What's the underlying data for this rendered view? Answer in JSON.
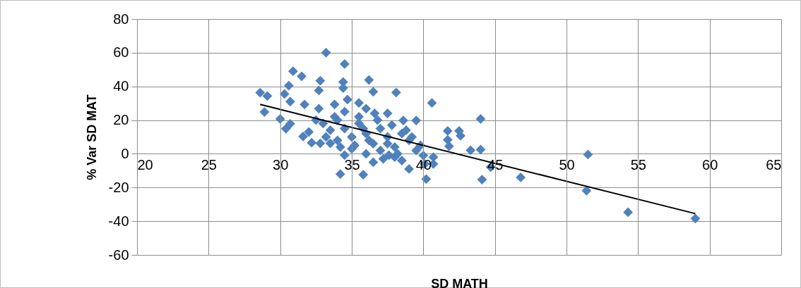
{
  "chart_data": {
    "type": "scatter",
    "xlabel": "SD MATH",
    "ylabel": "% Var SD MAT",
    "xlim": [
      20,
      65
    ],
    "xticks": [
      20,
      25,
      30,
      35,
      40,
      45,
      50,
      55,
      60,
      65
    ],
    "ylim": [
      -60,
      80
    ],
    "yticks": [
      -60,
      -40,
      -20,
      0,
      20,
      40,
      60,
      80
    ],
    "grid": true,
    "marker": "diamond",
    "series": [
      {
        "color": "#4f81bd",
        "x": [
          28.6,
          29.1,
          28.9,
          33.2,
          34.5,
          30.9,
          31.5,
          32.8,
          34.4,
          34.4,
          36.2,
          36.5,
          38.1,
          40.6,
          30.6,
          30.3,
          32.7,
          30.7,
          30.0,
          30.4,
          30.7,
          31.7,
          31.6,
          32.2,
          32.8,
          33.5,
          32.7,
          33.8,
          34.7,
          35.5,
          34.5,
          34.2,
          35.8,
          36.5,
          37.6,
          39.0,
          40.1,
          40.7,
          39.5,
          38.6,
          37.5,
          36.6,
          36.0,
          34,
          34.5,
          35,
          35.5,
          36,
          36.5,
          37,
          37.5,
          38,
          38.5,
          39,
          39.5,
          33.5,
          33,
          34,
          35,
          36,
          37,
          38,
          35.5,
          34.5,
          36.8,
          37.8,
          38.8,
          39.8,
          33.8,
          35.2,
          36.2,
          37.2,
          38.2,
          32.5,
          32,
          33.2,
          34.2,
          35.8,
          37.5,
          38.5,
          39.2,
          40,
          44.0,
          41.7,
          42.5,
          42.6,
          41.7,
          41.8,
          43.3,
          44.0,
          44.7,
          44.1,
          46.8,
          40.7,
          40.2,
          51.5,
          51.4,
          54.3,
          59.0
        ],
        "values": [
          36.3,
          34.3,
          24.8,
          60,
          53.3,
          49,
          46,
          43.4,
          42.6,
          39,
          43.8,
          36.8,
          36.4,
          30.2,
          40.5,
          35.5,
          37.6,
          31,
          20.7,
          14.9,
          17.8,
          29.3,
          10.3,
          6.6,
          6.2,
          6.2,
          26.8,
          29.3,
          32.2,
          30.2,
          -0.8,
          -12,
          -12.4,
          -5,
          -0.8,
          -9,
          -6,
          -2,
          19.8,
          19.8,
          24,
          24,
          26.8,
          20,
          15,
          10,
          18,
          12,
          6,
          15,
          10,
          4,
          12,
          8,
          2,
          14,
          18,
          8,
          3,
          0,
          2,
          -2,
          22,
          25,
          20,
          17,
          14,
          5,
          22,
          5,
          8,
          -3,
          0,
          20,
          13,
          10,
          4,
          15,
          6,
          -4,
          10,
          -1,
          20.7,
          13.6,
          13.6,
          10.7,
          8.3,
          4.5,
          2.1,
          2.5,
          -7.9,
          -15.3,
          -14,
          -6,
          -15,
          -0.4,
          -21.9,
          -34.7,
          -38.4
        ]
      },
      {
        "type": "line",
        "marker": "none",
        "color": "#000000",
        "x": [
          28.6,
          59.0
        ],
        "values": [
          29.3,
          -35.5
        ]
      }
    ]
  }
}
